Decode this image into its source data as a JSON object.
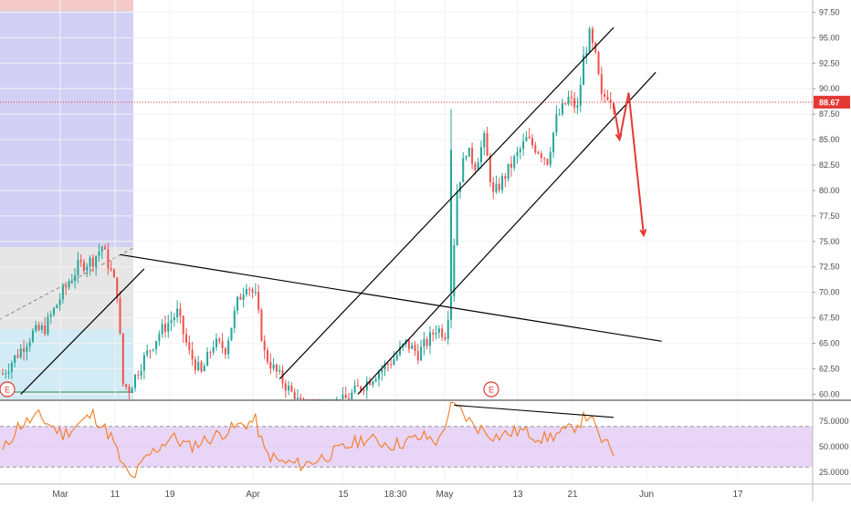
{
  "chart_data": {
    "type": "candlestick",
    "title": "",
    "price_axis": {
      "ylim": [
        59.5,
        98.7
      ],
      "ticks": [
        "97.50",
        "95.00",
        "92.50",
        "90.00",
        "87.50",
        "85.00",
        "82.50",
        "80.00",
        "77.50",
        "75.00",
        "72.50",
        "70.00",
        "67.50",
        "65.00",
        "62.50",
        "60.00"
      ],
      "last_price_label": "88.67",
      "last_price": 88.67,
      "last_price_color": "#e53935"
    },
    "rsi_axis": {
      "ylim": [
        14,
        95
      ],
      "ticks": [
        "75.0000",
        "50.0000",
        "25.0000"
      ],
      "upper_band": 70,
      "lower_band": 30,
      "band_color": "#e8d5f7",
      "line_color": "#f57c20"
    },
    "x_axis": {
      "ticks": [
        "Mar",
        "11",
        "19",
        "Apr",
        "15",
        "18:30",
        "May",
        "13",
        "21",
        "Jun",
        "17"
      ]
    },
    "earnings_markers": [
      "E",
      "E"
    ],
    "colors": {
      "up": "#26a69a",
      "down": "#ef5350",
      "projection": "#e53935",
      "lines": "#000000"
    }
  }
}
